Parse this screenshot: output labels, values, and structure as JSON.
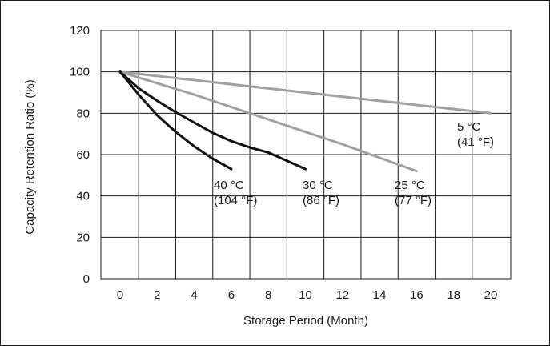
{
  "chart_data": {
    "type": "line",
    "title": "",
    "xlabel": "Storage Period (Month)",
    "ylabel": "Capacity Retention Ratio (%)",
    "xlim": [
      0,
      20
    ],
    "ylim": [
      0,
      120
    ],
    "xticks": [
      "0",
      "2",
      "4",
      "6",
      "8",
      "10",
      "12",
      "14",
      "16",
      "18",
      "20"
    ],
    "yticks": [
      "0",
      "20",
      "40",
      "60",
      "80",
      "100",
      "120"
    ],
    "grid": true,
    "series": [
      {
        "name": "5 °C (41 °F)",
        "label_lines": [
          "5 °C",
          "(41 °F)"
        ],
        "color": "#a0a0a0",
        "x": [
          0,
          20
        ],
        "y": [
          100,
          80
        ]
      },
      {
        "name": "25 °C (77 °F)",
        "label_lines": [
          "25 °C",
          "(77 °F)"
        ],
        "color": "#a0a0a0",
        "x": [
          0,
          4,
          8,
          12,
          16
        ],
        "y": [
          100,
          89,
          77,
          65,
          52
        ]
      },
      {
        "name": "30 °C (86 °F)",
        "label_lines": [
          "30 °C",
          "(86 °F)"
        ],
        "color": "#111111",
        "x": [
          0,
          1,
          2,
          3,
          4,
          5,
          6,
          7,
          8,
          9,
          10
        ],
        "y": [
          100,
          92,
          86,
          80.5,
          75.5,
          70.5,
          66.5,
          63.5,
          61,
          57,
          53
        ]
      },
      {
        "name": "40 °C (104 °F)",
        "label_lines": [
          "40 °C",
          "(104 °F)"
        ],
        "color": "#111111",
        "x": [
          0,
          1,
          2,
          3,
          4,
          5,
          6
        ],
        "y": [
          100,
          89,
          79,
          71,
          64,
          58,
          53
        ]
      }
    ]
  }
}
